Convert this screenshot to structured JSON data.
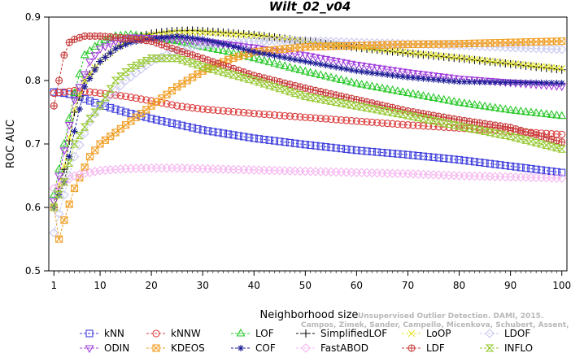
{
  "chart_data": {
    "type": "line",
    "title": "Wilt_02_v04",
    "xlabel": "Neighborhood size",
    "ylabel": "ROC AUC",
    "xlim": [
      0,
      101
    ],
    "ylim": [
      0.5,
      0.9
    ],
    "xticks": [
      1,
      10,
      20,
      30,
      40,
      50,
      60,
      70,
      80,
      90,
      100
    ],
    "yticks": [
      0.5,
      0.6,
      0.7,
      0.8,
      0.9
    ],
    "grid": false,
    "legend_position": "bottom",
    "watermark": {
      "line1": "Unsupervised Outlier Detection. DAMI, 2015.",
      "line2": "Campos, Zimek, Sander, Campello, Micenkova, Schubert, Assent, Houle"
    },
    "series": [
      {
        "name": "kNN",
        "color": "#3c3cdc",
        "marker": "square",
        "points": [
          [
            1,
            0.782
          ],
          [
            3,
            0.78
          ],
          [
            5,
            0.777
          ],
          [
            8,
            0.768
          ],
          [
            10,
            0.762
          ],
          [
            15,
            0.75
          ],
          [
            20,
            0.74
          ],
          [
            25,
            0.731
          ],
          [
            30,
            0.722
          ],
          [
            40,
            0.709
          ],
          [
            50,
            0.699
          ],
          [
            60,
            0.69
          ],
          [
            70,
            0.683
          ],
          [
            80,
            0.675
          ],
          [
            90,
            0.665
          ],
          [
            100,
            0.655
          ]
        ]
      },
      {
        "name": "kNNW",
        "color": "#dc3c3c",
        "marker": "circle",
        "points": [
          [
            1,
            0.78
          ],
          [
            3,
            0.782
          ],
          [
            5,
            0.784
          ],
          [
            8,
            0.782
          ],
          [
            10,
            0.78
          ],
          [
            15,
            0.775
          ],
          [
            20,
            0.768
          ],
          [
            25,
            0.76
          ],
          [
            30,
            0.755
          ],
          [
            40,
            0.748
          ],
          [
            50,
            0.742
          ],
          [
            60,
            0.736
          ],
          [
            70,
            0.73
          ],
          [
            80,
            0.725
          ],
          [
            90,
            0.72
          ],
          [
            100,
            0.715
          ]
        ]
      },
      {
        "name": "LOF",
        "color": "#28c828",
        "marker": "triangle",
        "points": [
          [
            1,
            0.62
          ],
          [
            3,
            0.7
          ],
          [
            5,
            0.78
          ],
          [
            7,
            0.84
          ],
          [
            10,
            0.86
          ],
          [
            13,
            0.87
          ],
          [
            16,
            0.872
          ],
          [
            20,
            0.868
          ],
          [
            25,
            0.862
          ],
          [
            30,
            0.853
          ],
          [
            35,
            0.845
          ],
          [
            40,
            0.835
          ],
          [
            50,
            0.814
          ],
          [
            60,
            0.795
          ],
          [
            70,
            0.78
          ],
          [
            80,
            0.765
          ],
          [
            90,
            0.753
          ],
          [
            100,
            0.744
          ]
        ]
      },
      {
        "name": "SimplifiedLOF",
        "color": "#111111",
        "marker": "plus",
        "points": [
          [
            1,
            0.6
          ],
          [
            3,
            0.66
          ],
          [
            5,
            0.75
          ],
          [
            7,
            0.8
          ],
          [
            10,
            0.83
          ],
          [
            13,
            0.85
          ],
          [
            16,
            0.866
          ],
          [
            20,
            0.874
          ],
          [
            24,
            0.878
          ],
          [
            28,
            0.879
          ],
          [
            32,
            0.877
          ],
          [
            40,
            0.872
          ],
          [
            50,
            0.862
          ],
          [
            60,
            0.852
          ],
          [
            70,
            0.843
          ],
          [
            80,
            0.835
          ],
          [
            90,
            0.826
          ],
          [
            100,
            0.817
          ]
        ]
      },
      {
        "name": "LoOP",
        "color": "#e6e632",
        "marker": "x",
        "points": [
          [
            1,
            0.605
          ],
          [
            3,
            0.665
          ],
          [
            5,
            0.755
          ],
          [
            7,
            0.8
          ],
          [
            10,
            0.83
          ],
          [
            13,
            0.85
          ],
          [
            16,
            0.865
          ],
          [
            20,
            0.872
          ],
          [
            25,
            0.876
          ],
          [
            30,
            0.876
          ],
          [
            40,
            0.871
          ],
          [
            50,
            0.862
          ],
          [
            60,
            0.853
          ],
          [
            70,
            0.844
          ],
          [
            80,
            0.836
          ],
          [
            90,
            0.827
          ],
          [
            100,
            0.819
          ]
        ]
      },
      {
        "name": "LDOF",
        "color": "#c8c8f0",
        "marker": "diamond",
        "points": [
          [
            1,
            0.56
          ],
          [
            3,
            0.62
          ],
          [
            5,
            0.68
          ],
          [
            8,
            0.735
          ],
          [
            10,
            0.76
          ],
          [
            15,
            0.8
          ],
          [
            20,
            0.83
          ],
          [
            25,
            0.848
          ],
          [
            30,
            0.856
          ],
          [
            40,
            0.862
          ],
          [
            50,
            0.863
          ],
          [
            60,
            0.86
          ],
          [
            70,
            0.858
          ],
          [
            80,
            0.855
          ],
          [
            90,
            0.852
          ],
          [
            100,
            0.849
          ]
        ]
      },
      {
        "name": "ODIN",
        "color": "#a03cdc",
        "marker": "triangle-down",
        "points": [
          [
            1,
            0.61
          ],
          [
            3,
            0.69
          ],
          [
            5,
            0.77
          ],
          [
            8,
            0.83
          ],
          [
            10,
            0.85
          ],
          [
            13,
            0.862
          ],
          [
            16,
            0.868
          ],
          [
            20,
            0.867
          ],
          [
            25,
            0.865
          ],
          [
            30,
            0.862
          ],
          [
            40,
            0.852
          ],
          [
            50,
            0.84
          ],
          [
            60,
            0.825
          ],
          [
            70,
            0.813
          ],
          [
            80,
            0.803
          ],
          [
            90,
            0.797
          ],
          [
            100,
            0.791
          ]
        ]
      },
      {
        "name": "KDEOS",
        "color": "#f0a028",
        "marker": "square-x",
        "points": [
          [
            1,
            0.6
          ],
          [
            2,
            0.55
          ],
          [
            3,
            0.58
          ],
          [
            5,
            0.63
          ],
          [
            8,
            0.68
          ],
          [
            10,
            0.7
          ],
          [
            15,
            0.73
          ],
          [
            20,
            0.76
          ],
          [
            25,
            0.79
          ],
          [
            30,
            0.815
          ],
          [
            35,
            0.833
          ],
          [
            40,
            0.845
          ],
          [
            50,
            0.853
          ],
          [
            60,
            0.855
          ],
          [
            70,
            0.857
          ],
          [
            80,
            0.858
          ],
          [
            90,
            0.86
          ],
          [
            100,
            0.862
          ]
        ]
      },
      {
        "name": "COF",
        "color": "#1e1e96",
        "marker": "asterisk",
        "points": [
          [
            1,
            0.6
          ],
          [
            3,
            0.64
          ],
          [
            5,
            0.72
          ],
          [
            7,
            0.79
          ],
          [
            10,
            0.83
          ],
          [
            13,
            0.85
          ],
          [
            16,
            0.86
          ],
          [
            20,
            0.866
          ],
          [
            25,
            0.87
          ],
          [
            30,
            0.865
          ],
          [
            35,
            0.856
          ],
          [
            40,
            0.845
          ],
          [
            50,
            0.83
          ],
          [
            60,
            0.815
          ],
          [
            70,
            0.805
          ],
          [
            80,
            0.798
          ],
          [
            90,
            0.797
          ],
          [
            100,
            0.796
          ]
        ]
      },
      {
        "name": "FastABOD",
        "color": "#f5b4f0",
        "marker": "diamond",
        "points": [
          [
            1,
            0.63
          ],
          [
            3,
            0.64
          ],
          [
            5,
            0.65
          ],
          [
            8,
            0.655
          ],
          [
            10,
            0.658
          ],
          [
            15,
            0.661
          ],
          [
            20,
            0.662
          ],
          [
            25,
            0.662
          ],
          [
            30,
            0.661
          ],
          [
            40,
            0.659
          ],
          [
            50,
            0.657
          ],
          [
            60,
            0.655
          ],
          [
            70,
            0.653
          ],
          [
            80,
            0.65
          ],
          [
            90,
            0.648
          ],
          [
            100,
            0.646
          ]
        ]
      },
      {
        "name": "LDF",
        "color": "#c83c3c",
        "marker": "circle-plus",
        "points": [
          [
            1,
            0.76
          ],
          [
            2,
            0.8
          ],
          [
            3,
            0.84
          ],
          [
            4,
            0.86
          ],
          [
            5,
            0.865
          ],
          [
            7,
            0.87
          ],
          [
            10,
            0.87
          ],
          [
            15,
            0.867
          ],
          [
            20,
            0.862
          ],
          [
            25,
            0.848
          ],
          [
            30,
            0.835
          ],
          [
            40,
            0.808
          ],
          [
            50,
            0.788
          ],
          [
            60,
            0.77
          ],
          [
            70,
            0.752
          ],
          [
            80,
            0.738
          ],
          [
            90,
            0.726
          ],
          [
            100,
            0.703
          ]
        ]
      },
      {
        "name": "INFLO",
        "color": "#96c832",
        "marker": "hourglass",
        "points": [
          [
            1,
            0.6
          ],
          [
            3,
            0.64
          ],
          [
            5,
            0.7
          ],
          [
            8,
            0.74
          ],
          [
            10,
            0.76
          ],
          [
            13,
            0.8
          ],
          [
            16,
            0.82
          ],
          [
            20,
            0.835
          ],
          [
            25,
            0.835
          ],
          [
            30,
            0.822
          ],
          [
            40,
            0.8
          ],
          [
            50,
            0.775
          ],
          [
            60,
            0.76
          ],
          [
            70,
            0.745
          ],
          [
            80,
            0.728
          ],
          [
            90,
            0.712
          ],
          [
            100,
            0.692
          ]
        ]
      }
    ]
  }
}
